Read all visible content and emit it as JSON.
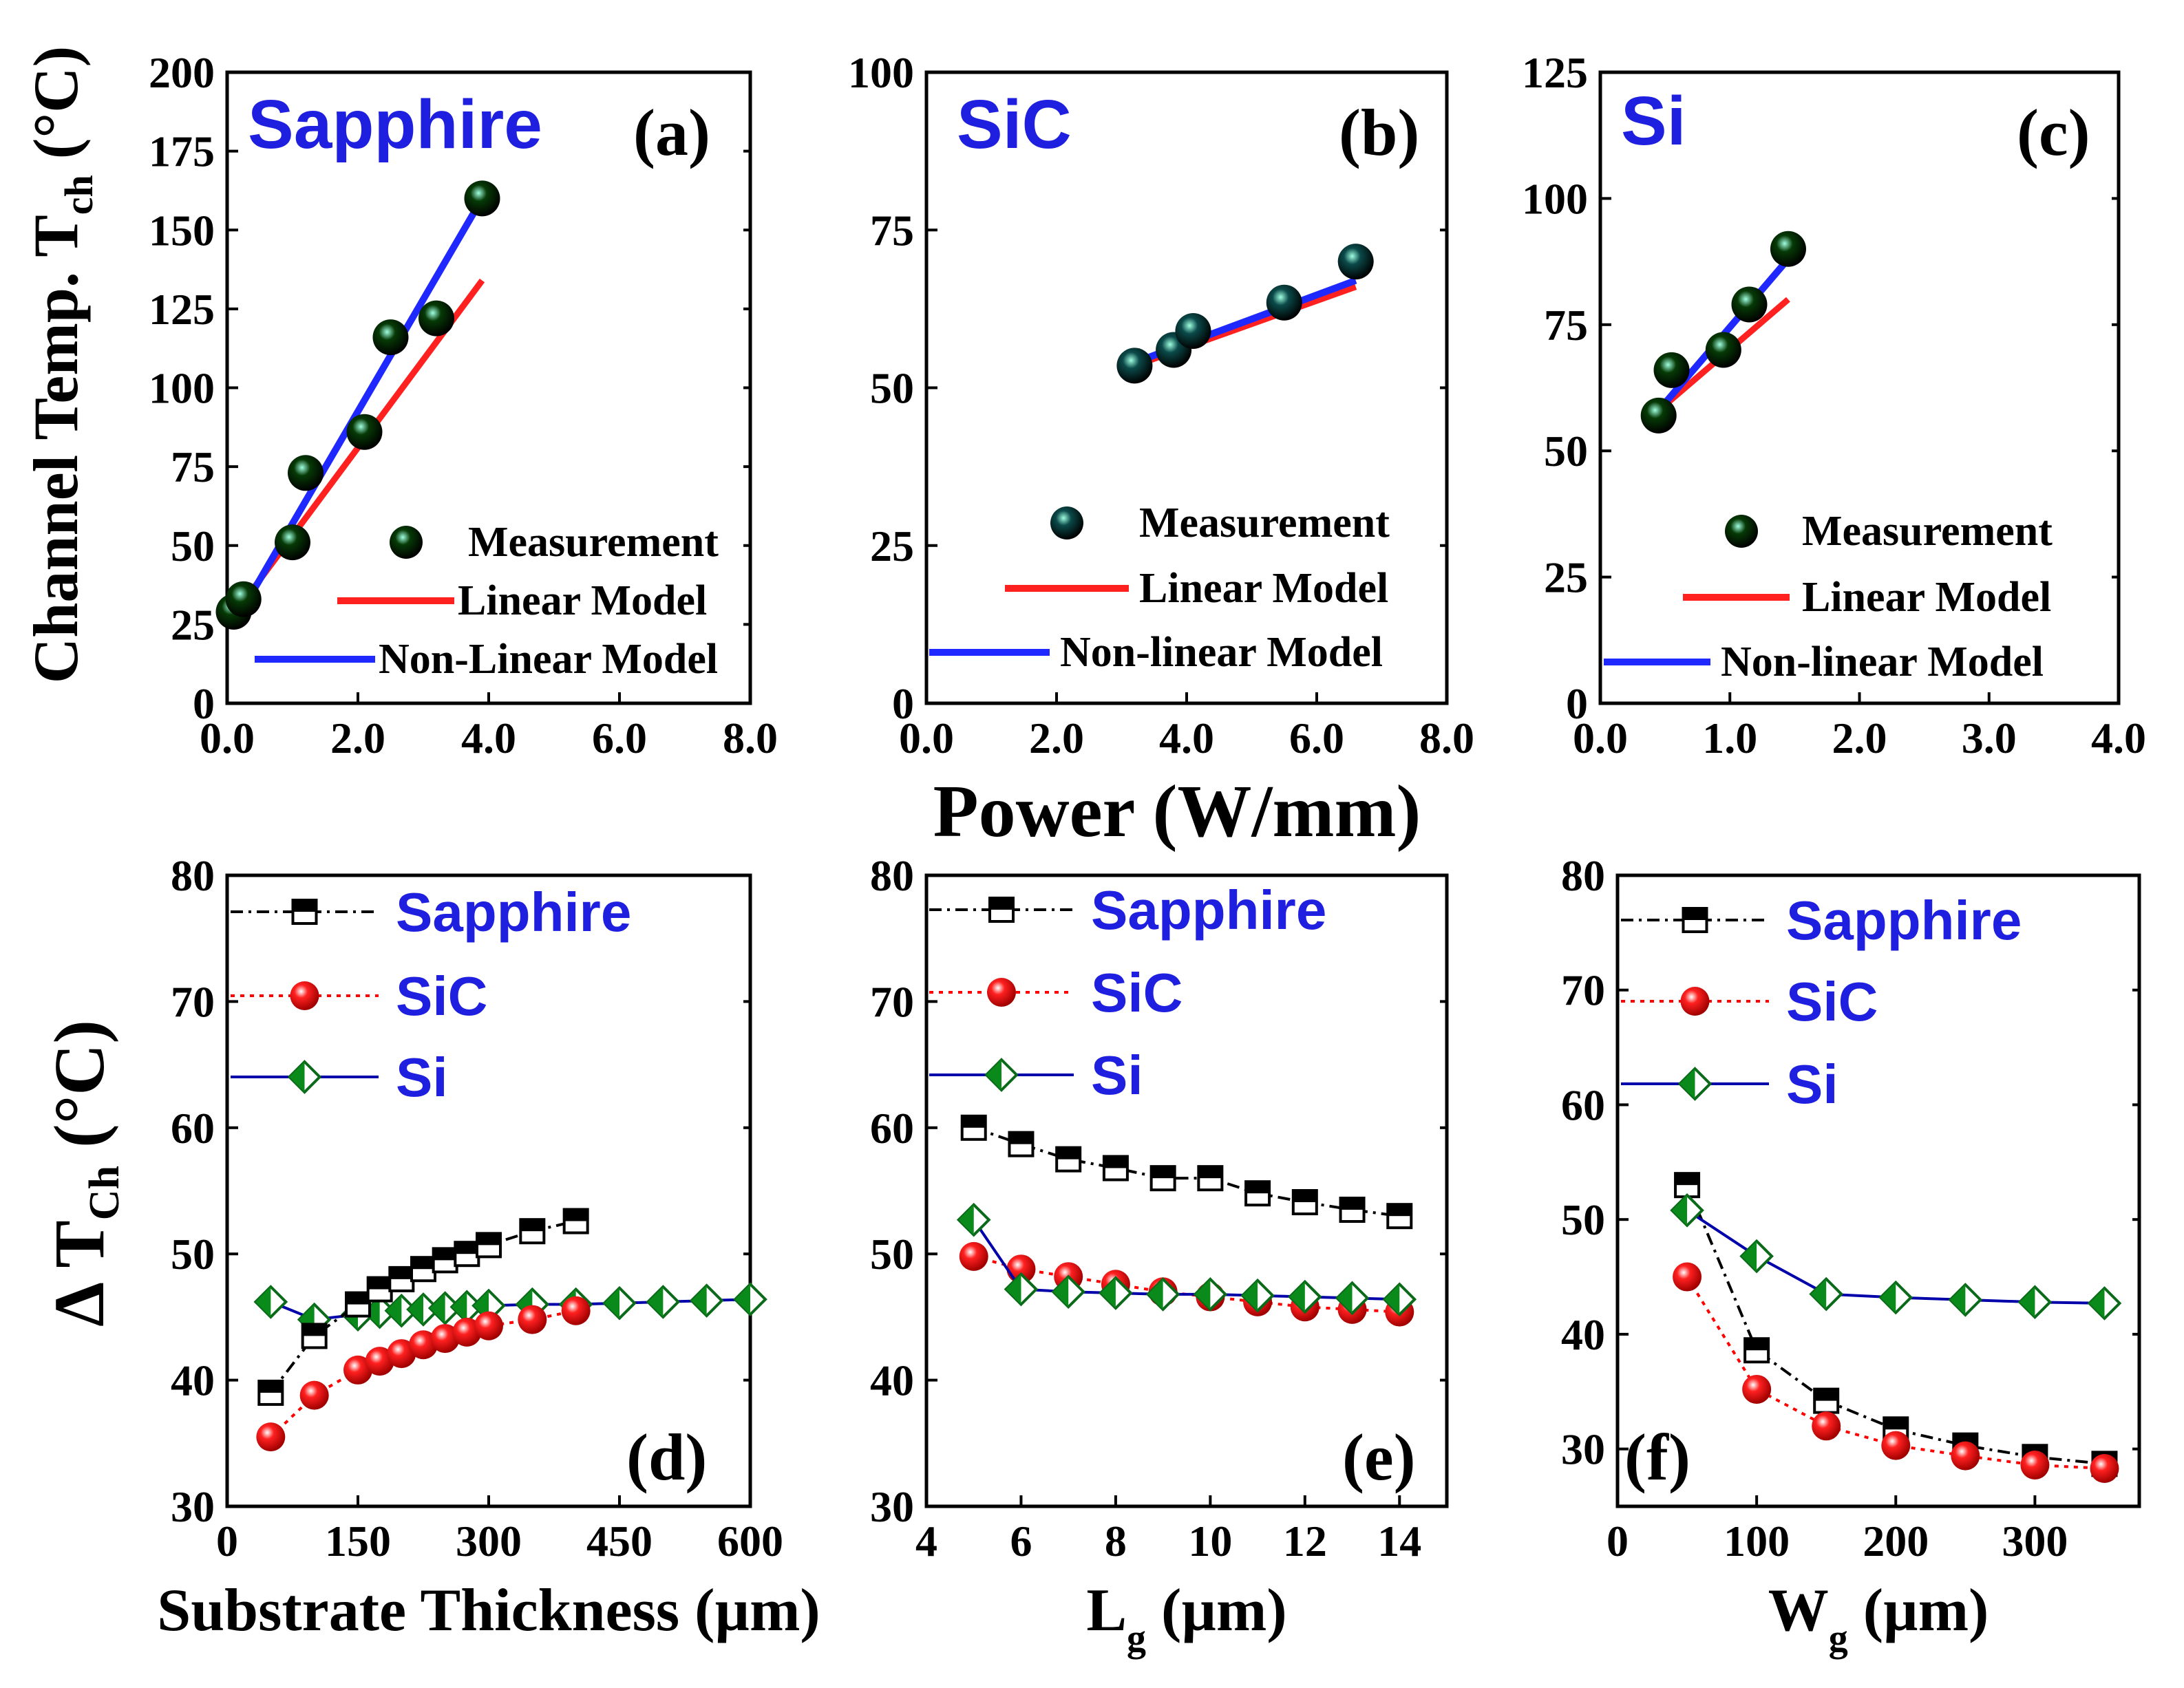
{
  "figure": {
    "shared_xlabel": "Power (W/mm)",
    "shared_ylabel_top": "Channel Temp. T",
    "shared_ylabel_top_sub": "ch",
    "shared_ylabel_top_unit": " (°C)",
    "shared_ylabel_bottom": "Δ T",
    "shared_ylabel_bottom_sub": "Ch",
    "shared_ylabel_bottom_unit": " (°C)"
  },
  "colors": {
    "blue_text": "#1f1fe0",
    "linear_model": "#ff2020",
    "nonlinear_model": "#1e28ff",
    "sapphire_line": "#000000",
    "sic_line": "#ff0000",
    "si_line": "#0000aa",
    "si_marker": "#0a8a1a",
    "sic_marker": "#e00000"
  },
  "chart_data": [
    {
      "id": "a",
      "type": "scatter",
      "panel_label": "(a)",
      "title": "Sapphire",
      "xlim": [
        0,
        8
      ],
      "ylim": [
        0,
        200
      ],
      "xticks": [
        0,
        2,
        4,
        6,
        8
      ],
      "xtick_labels": [
        "0.0",
        "2.0",
        "4.0",
        "6.0",
        "8.0"
      ],
      "yticks": [
        0,
        25,
        50,
        75,
        100,
        125,
        150,
        175,
        200
      ],
      "ytick_labels": [
        "0",
        "25",
        "50",
        "75",
        "100",
        "125",
        "150",
        "175",
        "200"
      ],
      "marker_color": "#063a06",
      "measurement": {
        "x": [
          0.1,
          0.25,
          1.0,
          1.2,
          2.1,
          2.5,
          3.2,
          3.9
        ],
        "y": [
          29,
          33,
          51,
          73,
          86,
          116,
          122,
          160
        ]
      },
      "linear_model": {
        "x": [
          0.1,
          3.9
        ],
        "y": [
          28,
          134
        ]
      },
      "nonlinear_model": {
        "x": [
          0.1,
          3.9
        ],
        "y": [
          25,
          160
        ]
      },
      "legend": [
        "Measurement",
        "Linear Model",
        "Non-Linear Model"
      ]
    },
    {
      "id": "b",
      "type": "scatter",
      "panel_label": "(b)",
      "title": "SiC",
      "xlim": [
        0,
        8
      ],
      "ylim": [
        0,
        100
      ],
      "xticks": [
        0,
        2,
        4,
        6,
        8
      ],
      "xtick_labels": [
        "0.0",
        "2.0",
        "4.0",
        "6.0",
        "8.0"
      ],
      "yticks": [
        0,
        25,
        50,
        75,
        100
      ],
      "ytick_labels": [
        "0",
        "25",
        "50",
        "75",
        "100"
      ],
      "marker_color": "#0b4a4a",
      "measurement": {
        "x": [
          3.2,
          3.8,
          4.1,
          5.5,
          6.6
        ],
        "y": [
          53.5,
          56,
          59,
          63.5,
          70
        ]
      },
      "linear_model": {
        "x": [
          3.2,
          6.6
        ],
        "y": [
          53.5,
          66
        ]
      },
      "nonlinear_model": {
        "x": [
          3.2,
          6.6
        ],
        "y": [
          54,
          67
        ]
      },
      "legend": [
        "Measurement",
        "Linear Model",
        "Non-linear Model"
      ]
    },
    {
      "id": "c",
      "type": "scatter",
      "panel_label": "(c)",
      "title": "Si",
      "xlim": [
        0,
        4
      ],
      "ylim": [
        0,
        125
      ],
      "xticks": [
        0,
        1,
        2,
        3,
        4
      ],
      "xtick_labels": [
        "0.0",
        "1.0",
        "2.0",
        "3.0",
        "4.0"
      ],
      "yticks": [
        0,
        25,
        50,
        75,
        100,
        125
      ],
      "ytick_labels": [
        "0",
        "25",
        "50",
        "75",
        "100",
        "125"
      ],
      "marker_color": "#063a06",
      "measurement": {
        "x": [
          0.45,
          0.55,
          0.95,
          1.15,
          1.45
        ],
        "y": [
          57,
          66,
          70,
          79,
          90
        ]
      },
      "linear_model": {
        "x": [
          0.45,
          1.45
        ],
        "y": [
          58,
          80
        ]
      },
      "nonlinear_model": {
        "x": [
          0.45,
          1.45
        ],
        "y": [
          58,
          88
        ]
      },
      "legend": [
        "Measurement",
        "Linear Model",
        "Non-linear Model"
      ]
    },
    {
      "id": "d",
      "type": "line",
      "panel_label": "(d)",
      "xlabel": "Substrate Thickness (µm)",
      "xlim": [
        0,
        600
      ],
      "ylim": [
        30,
        80
      ],
      "xticks": [
        0,
        150,
        300,
        450,
        600
      ],
      "xtick_labels": [
        "0",
        "150",
        "300",
        "450",
        "600"
      ],
      "yticks": [
        30,
        40,
        50,
        60,
        70,
        80
      ],
      "ytick_labels": [
        "30",
        "40",
        "50",
        "60",
        "70",
        "80"
      ],
      "series": [
        {
          "name": "Sapphire",
          "x": [
            50,
            100,
            150,
            175,
            200,
            225,
            250,
            275,
            300,
            350,
            400
          ],
          "y": [
            39,
            43.5,
            46,
            47.2,
            48,
            48.8,
            49.5,
            50,
            50.7,
            51.8,
            52.6
          ]
        },
        {
          "name": "SiC",
          "x": [
            50,
            100,
            150,
            175,
            200,
            225,
            250,
            275,
            300,
            350,
            400
          ],
          "y": [
            35.5,
            38.8,
            40.8,
            41.5,
            42.1,
            42.8,
            43.3,
            43.8,
            44.3,
            44.8,
            45.5
          ]
        },
        {
          "name": "Si",
          "x": [
            50,
            100,
            150,
            175,
            200,
            225,
            250,
            275,
            300,
            350,
            400,
            450,
            500,
            550,
            600
          ],
          "y": [
            46.2,
            44.8,
            45.2,
            45.4,
            45.5,
            45.6,
            45.7,
            45.8,
            45.9,
            46.0,
            46.0,
            46.1,
            46.2,
            46.3,
            46.4
          ]
        }
      ],
      "legend": [
        "Sapphire",
        "SiC",
        "Si"
      ]
    },
    {
      "id": "e",
      "type": "line",
      "panel_label": "(e)",
      "xlabel": "L",
      "xlabel_sub": "g",
      "xlabel_unit": " (µm)",
      "xlim": [
        4,
        15
      ],
      "ylim": [
        30,
        80
      ],
      "xticks": [
        4,
        6,
        8,
        10,
        12,
        14
      ],
      "xtick_labels": [
        "4",
        "6",
        "8",
        "10",
        "12",
        "14"
      ],
      "yticks": [
        30,
        40,
        50,
        60,
        70,
        80
      ],
      "ytick_labels": [
        "30",
        "40",
        "50",
        "60",
        "70",
        "80"
      ],
      "series": [
        {
          "name": "Sapphire",
          "x": [
            5,
            6,
            7,
            8,
            9,
            10,
            11,
            12,
            13,
            14
          ],
          "y": [
            60,
            58.7,
            57.5,
            56.8,
            56,
            56,
            54.8,
            54.1,
            53.5,
            53
          ]
        },
        {
          "name": "SiC",
          "x": [
            5,
            6,
            7,
            8,
            9,
            10,
            11,
            12,
            13,
            14
          ],
          "y": [
            49.8,
            48.8,
            48.2,
            47.6,
            47.0,
            46.6,
            46.2,
            45.8,
            45.6,
            45.4
          ]
        },
        {
          "name": "Si",
          "x": [
            5,
            6,
            7,
            8,
            9,
            10,
            11,
            12,
            13,
            14
          ],
          "y": [
            52.7,
            47.2,
            47.0,
            46.9,
            46.8,
            46.8,
            46.7,
            46.6,
            46.5,
            46.4
          ]
        }
      ],
      "legend": [
        "Sapphire",
        "SiC",
        "Si"
      ]
    },
    {
      "id": "f",
      "type": "line",
      "panel_label": "(f)",
      "xlabel": "W",
      "xlabel_sub": "g",
      "xlabel_unit": " (µm)",
      "xlim": [
        0,
        375
      ],
      "ylim": [
        25,
        80
      ],
      "xticks": [
        0,
        100,
        200,
        300
      ],
      "xtick_labels": [
        "0",
        "100",
        "200",
        "300"
      ],
      "yticks": [
        30,
        40,
        50,
        60,
        70,
        80
      ],
      "ytick_labels": [
        "30",
        "40",
        "50",
        "60",
        "70",
        "80"
      ],
      "series": [
        {
          "name": "Sapphire",
          "x": [
            50,
            100,
            150,
            200,
            250,
            300,
            350
          ],
          "y": [
            53,
            38.6,
            34.2,
            31.7,
            30.3,
            29.3,
            28.7
          ]
        },
        {
          "name": "SiC",
          "x": [
            50,
            100,
            150,
            200,
            250,
            300,
            350
          ],
          "y": [
            45,
            35.2,
            32.0,
            30.3,
            29.4,
            28.6,
            28.3
          ]
        },
        {
          "name": "Si",
          "x": [
            50,
            100,
            150,
            200,
            250,
            300,
            350
          ],
          "y": [
            50.8,
            46.8,
            43.5,
            43.2,
            43.0,
            42.8,
            42.7
          ]
        }
      ],
      "legend": [
        "Sapphire",
        "SiC",
        "Si"
      ]
    }
  ]
}
